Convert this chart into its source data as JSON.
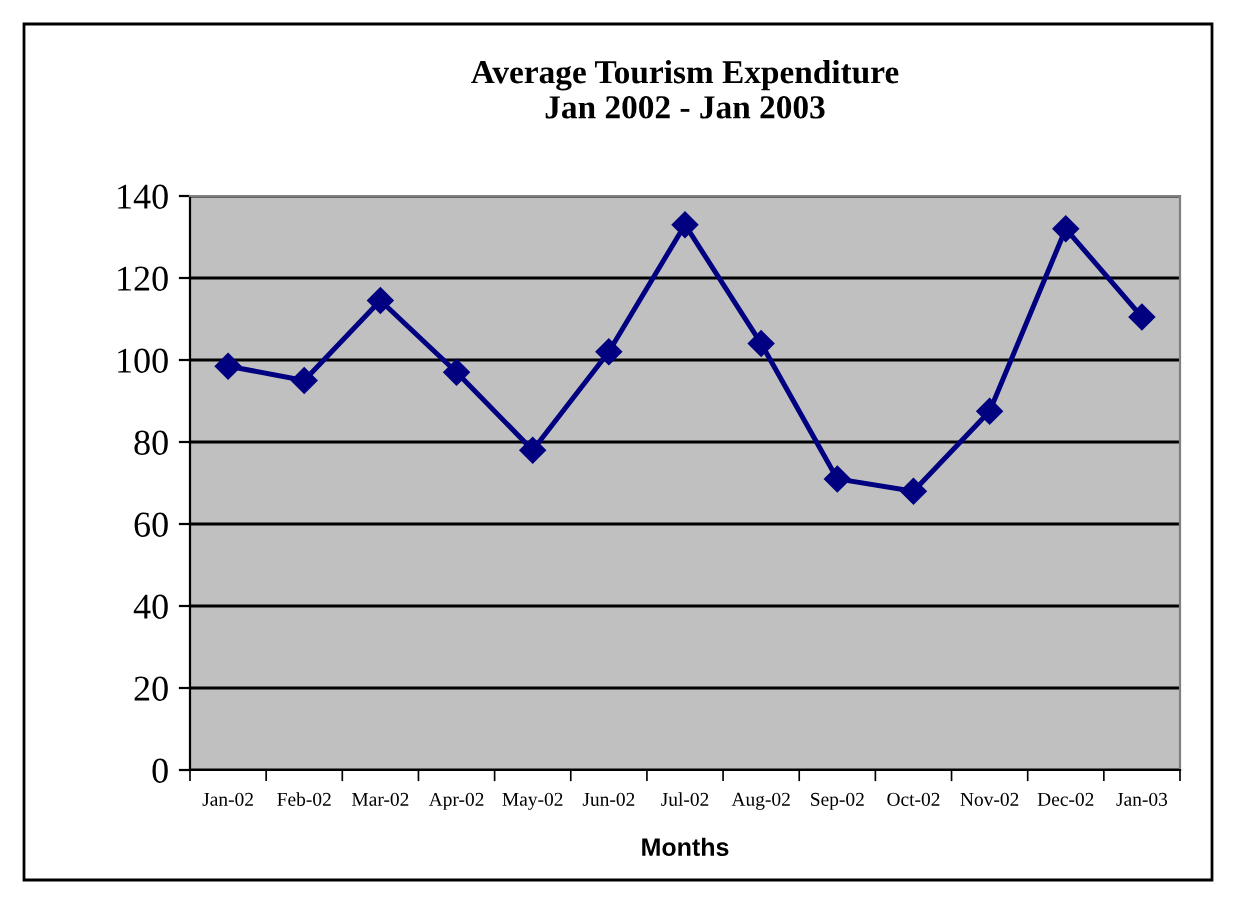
{
  "chart_data": {
    "type": "line",
    "title": "Average Tourism Expenditure\nJan 2002 - Jan 2003",
    "xlabel": "Months",
    "categories": [
      "Jan-02",
      "Feb-02",
      "Mar-02",
      "Apr-02",
      "May-02",
      "Jun-02",
      "Jul-02",
      "Aug-02",
      "Sep-02",
      "Oct-02",
      "Nov-02",
      "Dec-02",
      "Jan-03"
    ],
    "series": [
      {
        "color": "#000080",
        "values": [
          98.5,
          95,
          114.5,
          97,
          78,
          102,
          133,
          104,
          71,
          68,
          87.5,
          132,
          110.5
        ]
      }
    ],
    "ylim": [
      0,
      140
    ],
    "yticks": [
      0,
      20,
      40,
      60,
      80,
      100,
      120,
      140
    ],
    "grid": "y",
    "marker": "diamond",
    "line_style": "solid"
  }
}
